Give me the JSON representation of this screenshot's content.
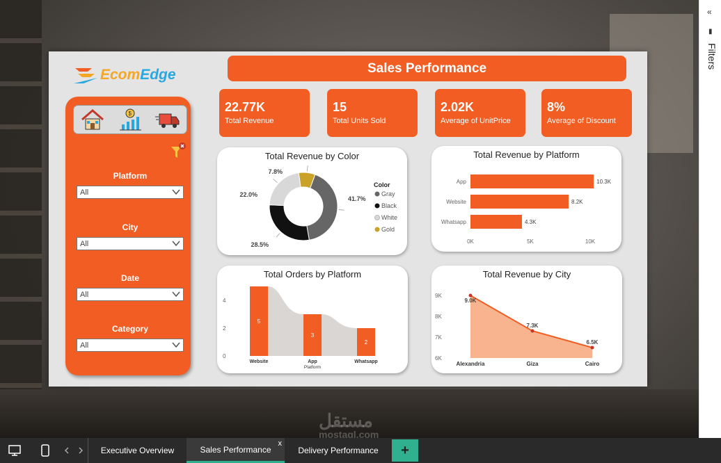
{
  "app": {
    "logo_text_1": "Ecom",
    "logo_text_2": "Edge"
  },
  "header": {
    "title": "Sales Performance"
  },
  "kpis": [
    {
      "value": "22.77K",
      "label": "Total Revenue"
    },
    {
      "value": "15",
      "label": "Total Units Sold"
    },
    {
      "value": "2.02K",
      "label": "Average of UnitPrice"
    },
    {
      "value": "8%",
      "label": "Average of Discount"
    }
  ],
  "sidebar": {
    "nav_icons": [
      "house-icon",
      "growth-chart-icon",
      "delivery-truck-icon"
    ],
    "filters": [
      {
        "label": "Platform",
        "value": "All"
      },
      {
        "label": "City",
        "value": "All"
      },
      {
        "label": "Date",
        "value": "All"
      },
      {
        "label": "Category",
        "value": "All"
      }
    ]
  },
  "filters_pane": {
    "label": "Filters"
  },
  "colors": {
    "accent": "#f15d22",
    "tab_accent": "#30b08f"
  },
  "chart_data": [
    {
      "type": "pie",
      "title": "Total Revenue by Color",
      "legend_title": "Color",
      "legend_position": "right",
      "slices": [
        {
          "name": "Gray",
          "value": 41.7,
          "label": "41.7%",
          "color": "#666666"
        },
        {
          "name": "Black",
          "value": 28.5,
          "label": "28.5%",
          "color": "#111111"
        },
        {
          "name": "White",
          "value": 22.0,
          "label": "22.0%",
          "color": "#d8d8d8"
        },
        {
          "name": "Gold",
          "value": 7.8,
          "label": "7.8%",
          "color": "#c9a227"
        }
      ]
    },
    {
      "type": "bar",
      "orientation": "horizontal",
      "title": "Total Revenue by Platform",
      "categories": [
        "App",
        "Website",
        "Whatsapp"
      ],
      "values": [
        10.3,
        8.2,
        4.3
      ],
      "data_labels": [
        "10.3K",
        "8.2K",
        "4.3K"
      ],
      "x_ticks": [
        "0K",
        "5K",
        "10K"
      ],
      "xlim": [
        0,
        12
      ]
    },
    {
      "type": "bar",
      "title": "Total Orders by Platform",
      "xlabel": "Platform",
      "categories": [
        "Website",
        "App",
        "Whatsapp"
      ],
      "values": [
        5,
        3,
        2
      ],
      "y_ticks": [
        "0",
        "2",
        "4"
      ],
      "ylim": [
        0,
        5
      ]
    },
    {
      "type": "area",
      "title": "Total Revenue by City",
      "categories": [
        "Alexandria",
        "Giza",
        "Cairo"
      ],
      "values": [
        9.0,
        7.3,
        6.5
      ],
      "data_labels": [
        "9.0K",
        "7.3K",
        "6.5K"
      ],
      "y_ticks": [
        "6K",
        "7K",
        "8K",
        "9K"
      ],
      "ylim": [
        6,
        9
      ]
    }
  ],
  "tabbar": {
    "tabs": [
      {
        "label": "Executive Overview"
      },
      {
        "label": "Sales Performance"
      },
      {
        "label": "Delivery Performance"
      }
    ],
    "close_glyph": "x",
    "add_glyph": "+"
  },
  "watermark": {
    "line1": "مستقل",
    "line2": "mostaql.com"
  }
}
